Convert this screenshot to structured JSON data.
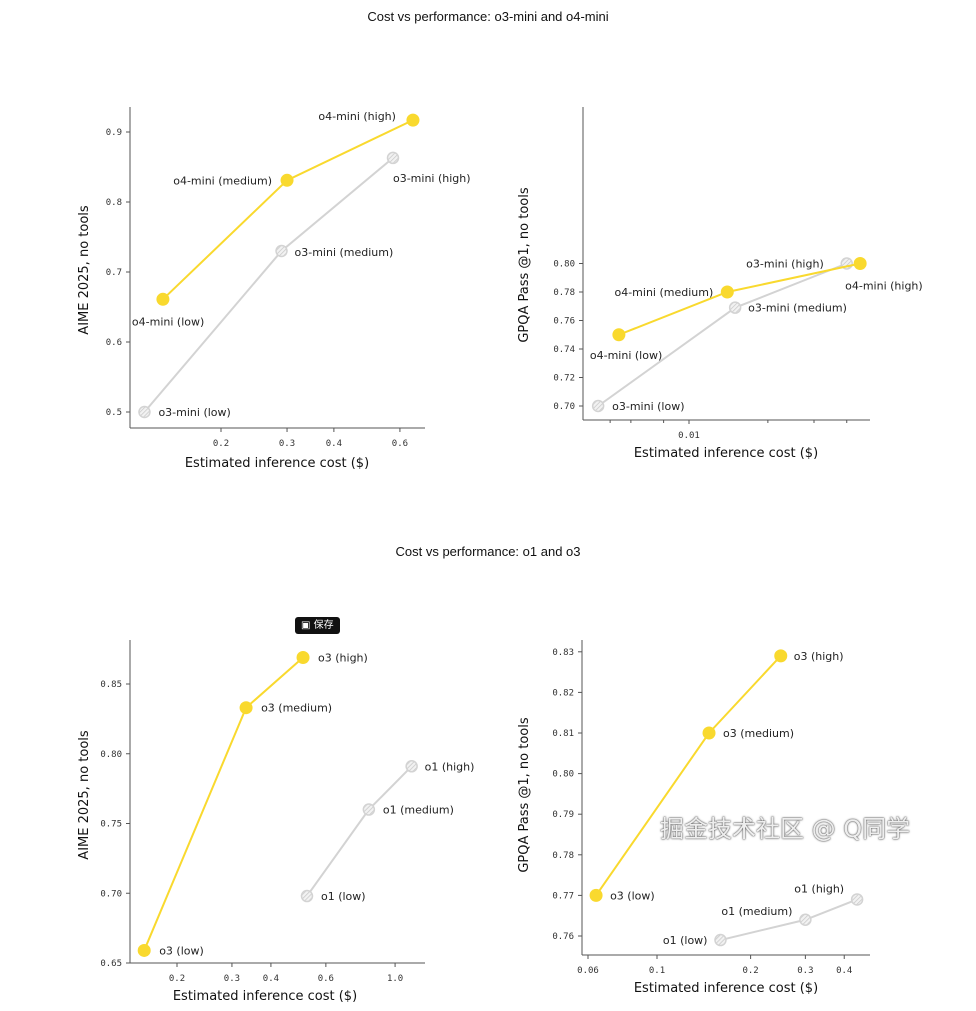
{
  "section_titles": [
    "Cost vs performance: o3-mini and o4-mini",
    "Cost vs performance: o1 and o3"
  ],
  "save_button": {
    "icon": "bookmark-icon",
    "label": "保存"
  },
  "watermark": "掘金技术社区 @ Q同学",
  "colors": {
    "o4_series": "#F9D92E",
    "o3_series": "#F9D92E",
    "gray_series": "#D3D3D3",
    "axis": "#555555"
  },
  "chart_data": [
    {
      "type": "scatter",
      "xlabel": "Estimated inference cost ($)",
      "ylabel": "AIME 2025, no tools",
      "xscale": "log",
      "xticks": [
        0.2,
        0.3,
        0.4,
        0.6
      ],
      "xtick_labels": [
        "0.2",
        "0.3",
        "0.4",
        "0.6"
      ],
      "yticks": [
        0.5,
        0.6,
        0.7,
        0.8,
        0.9
      ],
      "ytick_labels": [
        "0.5",
        "0.6",
        "0.7",
        "0.8",
        "0.9"
      ],
      "grid": false,
      "series": [
        {
          "color": "#F9D92E",
          "style": "filled",
          "points": [
            {
              "x": 0.14,
              "y": 0.661,
              "label": "o4-mini (low)"
            },
            {
              "x": 0.3,
              "y": 0.831,
              "label": "o4-mini (medium)"
            },
            {
              "x": 0.65,
              "y": 0.917,
              "label": "o4-mini (high)"
            }
          ]
        },
        {
          "color": "#D3D3D3",
          "style": "hatched",
          "points": [
            {
              "x": 0.125,
              "y": 0.5,
              "label": "o3-mini (low)"
            },
            {
              "x": 0.29,
              "y": 0.73,
              "label": "o3-mini (medium)"
            },
            {
              "x": 0.575,
              "y": 0.863,
              "label": "o3-mini (high)"
            }
          ]
        }
      ]
    },
    {
      "type": "scatter",
      "xlabel": "Estimated inference cost ($)",
      "ylabel": "GPQA Pass @1, no tools",
      "xscale": "log",
      "xticks": [
        0.01
      ],
      "xtick_labels": [
        "0.01"
      ],
      "yticks": [
        0.7,
        0.72,
        0.74,
        0.76,
        0.78,
        0.8
      ],
      "ytick_labels": [
        "0.70",
        "0.72",
        "0.74",
        "0.76",
        "0.78",
        "0.80"
      ],
      "grid": false,
      "series": [
        {
          "color": "#F9D92E",
          "style": "filled",
          "points": [
            {
              "x": 0.0054,
              "y": 0.75,
              "label": "o4-mini (low)"
            },
            {
              "x": 0.014,
              "y": 0.78,
              "label": "o4-mini (medium)"
            },
            {
              "x": 0.045,
              "y": 0.8,
              "label": "o4-mini (high)"
            }
          ]
        },
        {
          "color": "#D3D3D3",
          "style": "hatched",
          "points": [
            {
              "x": 0.0045,
              "y": 0.7,
              "label": "o3-mini (low)"
            },
            {
              "x": 0.015,
              "y": 0.769,
              "label": "o3-mini (medium)"
            },
            {
              "x": 0.04,
              "y": 0.8,
              "label": "o3-mini (high)"
            }
          ]
        }
      ]
    },
    {
      "type": "scatter",
      "xlabel": "Estimated inference cost ($)",
      "ylabel": "AIME 2025, no tools",
      "xscale": "log",
      "xticks": [
        0.2,
        0.3,
        0.4,
        0.6,
        1.0
      ],
      "xtick_labels": [
        "0.2",
        "0.3",
        "0.4",
        "0.6",
        "1.0"
      ],
      "yticks": [
        0.65,
        0.7,
        0.75,
        0.8,
        0.85
      ],
      "ytick_labels": [
        "0.65",
        "0.70",
        "0.75",
        "0.80",
        "0.85"
      ],
      "grid": false,
      "series": [
        {
          "color": "#F9D92E",
          "style": "filled",
          "points": [
            {
              "x": 0.157,
              "y": 0.659,
              "label": "o3 (low)"
            },
            {
              "x": 0.333,
              "y": 0.833,
              "label": "o3 (medium)"
            },
            {
              "x": 0.507,
              "y": 0.869,
              "label": "o3 (high)"
            }
          ]
        },
        {
          "color": "#D3D3D3",
          "style": "hatched",
          "points": [
            {
              "x": 0.522,
              "y": 0.698,
              "label": "o1 (low)"
            },
            {
              "x": 0.824,
              "y": 0.76,
              "label": "o1 (medium)"
            },
            {
              "x": 1.13,
              "y": 0.791,
              "label": "o1 (high)"
            }
          ]
        }
      ]
    },
    {
      "type": "scatter",
      "xlabel": "Estimated inference cost ($)",
      "ylabel": "GPQA Pass @1, no tools",
      "xscale": "log",
      "xticks": [
        0.06,
        0.1,
        0.2,
        0.3,
        0.4
      ],
      "xtick_labels": [
        "0.06",
        "0.1",
        "0.2",
        "0.3",
        "0.4"
      ],
      "yticks": [
        0.76,
        0.77,
        0.78,
        0.79,
        0.8,
        0.81,
        0.82,
        0.83
      ],
      "ytick_labels": [
        "0.76",
        "0.77",
        "0.78",
        "0.79",
        "0.80",
        "0.81",
        "0.82",
        "0.83"
      ],
      "grid": false,
      "series": [
        {
          "color": "#F9D92E",
          "style": "filled",
          "points": [
            {
              "x": 0.0637,
              "y": 0.77,
              "label": "o3 (low)"
            },
            {
              "x": 0.147,
              "y": 0.81,
              "label": "o3 (medium)"
            },
            {
              "x": 0.25,
              "y": 0.829,
              "label": "o3 (high)"
            }
          ]
        },
        {
          "color": "#D3D3D3",
          "style": "hatched",
          "points": [
            {
              "x": 0.16,
              "y": 0.759,
              "label": "o1 (low)"
            },
            {
              "x": 0.3,
              "y": 0.764,
              "label": "o1 (medium)"
            },
            {
              "x": 0.44,
              "y": 0.769,
              "label": "o1 (high)"
            }
          ]
        }
      ]
    }
  ]
}
